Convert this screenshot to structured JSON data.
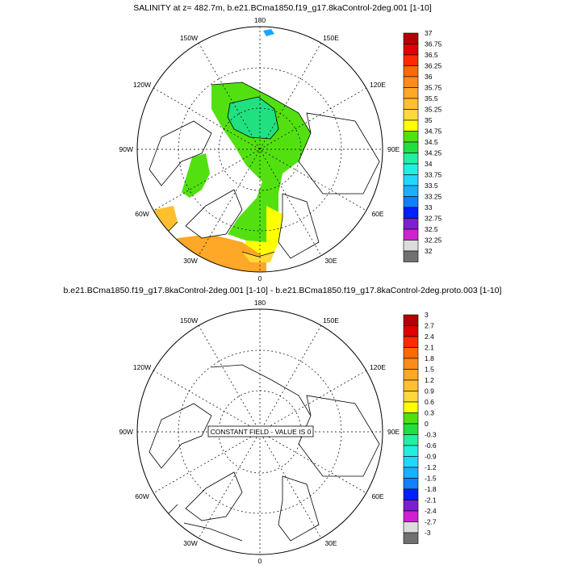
{
  "panels": [
    {
      "title": "SALINITY at z= 482.7m, b.e21.BCma1850.f19_g17.8kaControl-2deg.001 [1-10]",
      "lon_labels": {
        "top": "180",
        "bottom": "0",
        "left": "90W",
        "right": "90E",
        "upper_left": "150W",
        "upper_left2": "120W",
        "lower_left": "60W",
        "lower_left2": "30W",
        "upper_right": "150E",
        "upper_right2": "120E",
        "lower_right": "60E",
        "lower_right2": "30E"
      },
      "colorbar": {
        "labels": [
          "37",
          "36.75",
          "36.5",
          "36.25",
          "36",
          "35.75",
          "35.5",
          "35.25",
          "35",
          "34.75",
          "34.5",
          "34.25",
          "34",
          "33.75",
          "33.5",
          "33.25",
          "33",
          "32.75",
          "32.5",
          "32.25",
          "32"
        ],
        "colors": [
          "#b30000",
          "#e00000",
          "#ff2a00",
          "#ff6a00",
          "#ff8c1a",
          "#ffa726",
          "#ffc030",
          "#ffd83a",
          "#ffff00",
          "#52e010",
          "#20e040",
          "#20f0a0",
          "#20f0e0",
          "#20d8ff",
          "#18b0ff",
          "#1080ff",
          "#0020ff",
          "#7a20d0",
          "#d020d0",
          "#dcdcdc",
          "#707070"
        ]
      },
      "message": ""
    },
    {
      "title": "b.e21.BCma1850.f19_g17.8kaControl-2deg.001 [1-10] - b.e21.BCma1850.f19_g17.8kaControl-2deg.proto.003 [1-10]",
      "lon_labels": {
        "top": "180",
        "bottom": "0",
        "left": "90W",
        "right": "90E",
        "upper_left": "150W",
        "upper_left2": "120W",
        "lower_left": "60W",
        "lower_left2": "30W",
        "upper_right": "150E",
        "upper_right2": "120E",
        "lower_right": "60E",
        "lower_right2": "30E"
      },
      "colorbar": {
        "labels": [
          "3",
          "2.7",
          "2.4",
          "2.1",
          "1.8",
          "1.5",
          "1.2",
          "0.9",
          "0.6",
          "0.3",
          "0",
          "-0.3",
          "-0.6",
          "-0.9",
          "-1.2",
          "-1.5",
          "-1.8",
          "-2.1",
          "-2.4",
          "-2.7",
          "-3"
        ],
        "colors": [
          "#b30000",
          "#e00000",
          "#ff2a00",
          "#ff6a00",
          "#ff8c1a",
          "#ffa726",
          "#ffc030",
          "#ffd83a",
          "#ffff00",
          "#52e010",
          "#20e040",
          "#20f0a0",
          "#20f0e0",
          "#20d8ff",
          "#18b0ff",
          "#1080ff",
          "#0020ff",
          "#7a20d0",
          "#d020d0",
          "#dcdcdc",
          "#707070"
        ]
      },
      "message": "CONSTANT FIELD - VALUE IS 0"
    }
  ]
}
